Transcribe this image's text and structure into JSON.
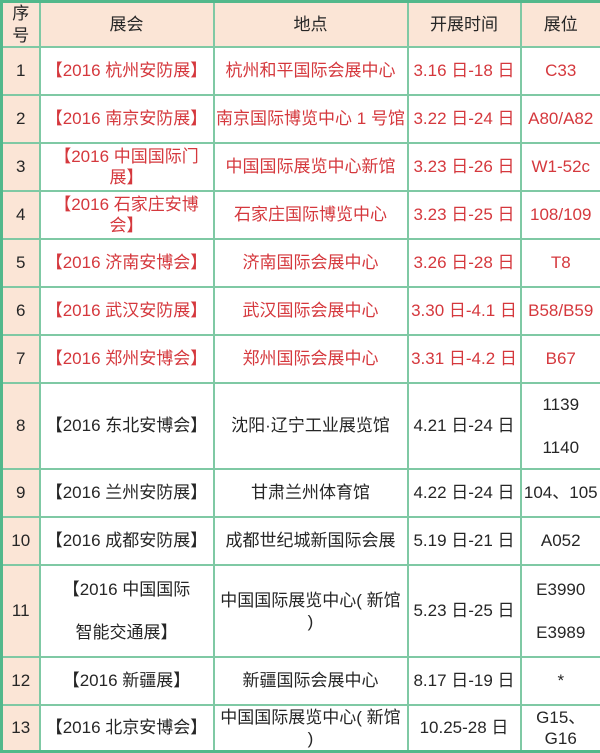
{
  "chart_data": {
    "type": "table",
    "title": "2016 exhibition schedule",
    "columns": [
      "序号",
      "展会",
      "地点",
      "开展时间",
      "展位"
    ],
    "rows": [
      {
        "no": "1",
        "show_lines": [
          "【2016 杭州安防展】"
        ],
        "venue": "杭州和平国际会展中心",
        "date": "3.16 日-18 日",
        "booth_lines": [
          "C33"
        ],
        "text_color": "red"
      },
      {
        "no": "2",
        "show_lines": [
          "【2016 南京安防展】"
        ],
        "venue": "南京国际博览中心 1 号馆",
        "date": "3.22 日-24 日",
        "booth_lines": [
          "A80/A82"
        ],
        "text_color": "red"
      },
      {
        "no": "3",
        "show_lines": [
          "【2016 中国国际门展】"
        ],
        "venue": "中国国际展览中心新馆",
        "date": "3.23 日-26 日",
        "booth_lines": [
          "W1-52c"
        ],
        "text_color": "red"
      },
      {
        "no": "4",
        "show_lines": [
          "【2016 石家庄安博会】"
        ],
        "venue": "石家庄国际博览中心",
        "date": "3.23 日-25 日",
        "booth_lines": [
          "108/109"
        ],
        "text_color": "red"
      },
      {
        "no": "5",
        "show_lines": [
          "【2016 济南安博会】"
        ],
        "venue": "济南国际会展中心",
        "date": "3.26 日-28 日",
        "booth_lines": [
          "T8"
        ],
        "text_color": "red"
      },
      {
        "no": "6",
        "show_lines": [
          "【2016 武汉安防展】"
        ],
        "venue": "武汉国际会展中心",
        "date": "3.30 日-4.1 日",
        "booth_lines": [
          "B58/B59"
        ],
        "text_color": "red"
      },
      {
        "no": "7",
        "show_lines": [
          "【2016 郑州安博会】"
        ],
        "venue": "郑州国际会展中心",
        "date": "3.31 日-4.2 日",
        "booth_lines": [
          "B67"
        ],
        "text_color": "red"
      },
      {
        "no": "8",
        "show_lines": [
          "【2016 东北安博会】"
        ],
        "venue": "沈阳·辽宁工业展览馆",
        "date": "4.21 日-24 日",
        "booth_lines": [
          "1139",
          "1140"
        ],
        "text_color": "dark"
      },
      {
        "no": "9",
        "show_lines": [
          "【2016 兰州安防展】"
        ],
        "venue": "甘肃兰州体育馆",
        "date": "4.22 日-24 日",
        "booth_lines": [
          "104、105"
        ],
        "text_color": "dark"
      },
      {
        "no": "10",
        "show_lines": [
          "【2016 成都安防展】"
        ],
        "venue": "成都世纪城新国际会展",
        "date": "5.19 日-21 日",
        "booth_lines": [
          "A052"
        ],
        "text_color": "dark"
      },
      {
        "no": "11",
        "show_lines": [
          "【2016 中国国际",
          "智能交通展】"
        ],
        "venue": "中国国际展览中心( 新馆 )",
        "date": "5.23 日-25 日",
        "booth_lines": [
          "E3990",
          "E3989"
        ],
        "text_color": "dark"
      },
      {
        "no": "12",
        "show_lines": [
          "【2016 新疆展】"
        ],
        "venue": "新疆国际会展中心",
        "date": "8.17 日-19 日",
        "booth_lines": [
          "*"
        ],
        "text_color": "dark"
      },
      {
        "no": "13",
        "show_lines": [
          "【2016 北京安博会】"
        ],
        "venue": "中国国际展览中心( 新馆 )",
        "date": "10.25-28 日",
        "booth_lines": [
          "G15、G16"
        ],
        "text_color": "dark"
      }
    ]
  },
  "colors": {
    "border_outer": "#52b88b",
    "border_inner": "#7fc9a4",
    "header_bg": "#fbe5d6",
    "serial_bg": "#fbe5d6",
    "red_text": "#d5383d",
    "dark_text": "#262626",
    "cell_bg": "#ffffff"
  }
}
